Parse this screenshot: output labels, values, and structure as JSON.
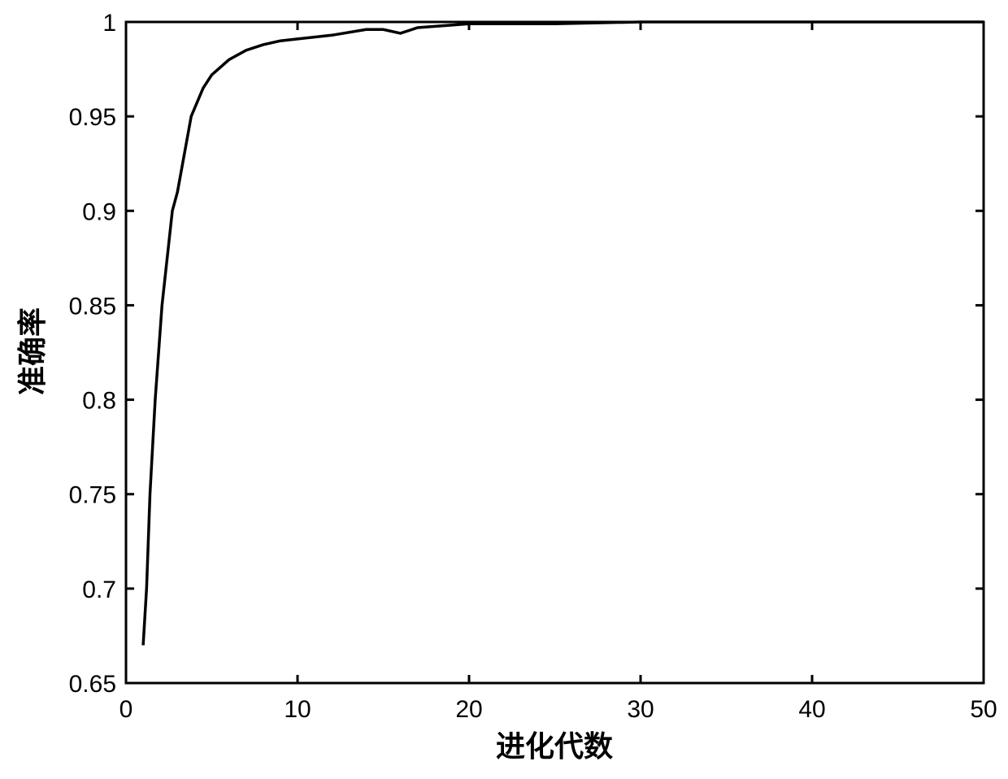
{
  "chart_data": {
    "type": "line",
    "title": "",
    "xlabel": "进化代数",
    "ylabel": "准确率",
    "xlim": [
      0,
      50
    ],
    "ylim": [
      0.65,
      1
    ],
    "xticks": [
      "0",
      "10",
      "20",
      "30",
      "40",
      "50"
    ],
    "yticks": [
      "0.65",
      "0.7",
      "0.75",
      "0.8",
      "0.85",
      "0.9",
      "0.95",
      "1"
    ],
    "grid": false,
    "line_color": "#000000",
    "series": [
      {
        "x": [
          1,
          1.2,
          1.4,
          1.7,
          2.1,
          2.7,
          3,
          3.8,
          4.5,
          5,
          6,
          7,
          8,
          9,
          10,
          12,
          14,
          15,
          16,
          17,
          20,
          25,
          30,
          34,
          40,
          45,
          50
        ],
        "y": [
          0.67,
          0.7,
          0.75,
          0.8,
          0.85,
          0.9,
          0.91,
          0.95,
          0.965,
          0.972,
          0.98,
          0.985,
          0.988,
          0.99,
          0.991,
          0.993,
          0.996,
          0.996,
          0.994,
          0.997,
          0.999,
          0.999,
          1,
          1,
          1,
          1,
          1
        ]
      }
    ]
  }
}
